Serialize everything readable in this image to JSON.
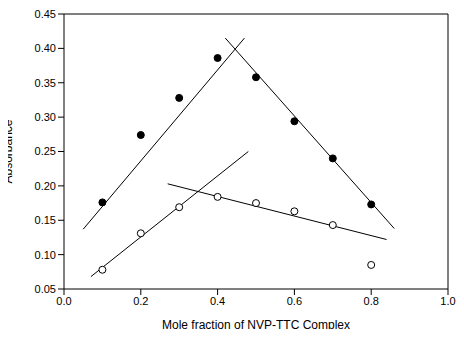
{
  "chart_data": {
    "type": "scatter",
    "x_label": "Mole fraction of NVP-TTC Complex",
    "y_label": "Absorbance",
    "xlim": [
      0,
      1
    ],
    "xticks": [
      {
        "value": 0,
        "label": "0.0"
      },
      0.2,
      0.4,
      0.6,
      0.8,
      {
        "value": 1,
        "label": "1.0"
      }
    ],
    "ylim": [
      0.05,
      0.45
    ],
    "yticks": [
      0.05,
      {
        "value": 0.1,
        "label": "0.10"
      },
      0.15,
      {
        "value": 0.2,
        "label": "0.20"
      },
      0.25,
      {
        "value": 0.3,
        "label": "0.30"
      },
      0.35,
      {
        "value": 0.4,
        "label": "0.40"
      },
      0.45
    ],
    "grid": false,
    "series": [
      {
        "type": "scatter",
        "color": "#000000",
        "marker": "circle",
        "x": [
          0.1,
          0.2,
          0.3,
          0.4,
          0.5,
          0.6,
          0.7,
          0.8
        ],
        "values": [
          0.176,
          0.274,
          0.328,
          0.386,
          0.358,
          0.294,
          0.24,
          0.173
        ]
      },
      {
        "type": "scatter",
        "color": "#000000",
        "marker": "open_circle",
        "x": [
          0.1,
          0.2,
          0.3,
          0.4,
          0.5,
          0.6,
          0.7,
          0.8
        ],
        "values": [
          0.078,
          0.131,
          0.169,
          0.184,
          0.175,
          0.163,
          0.143,
          0.085
        ]
      },
      {
        "type": "line",
        "color": "#000000",
        "line_style": "solid",
        "x": [
          0.05,
          0.47
        ],
        "values": [
          0.137,
          0.415
        ]
      },
      {
        "type": "line",
        "color": "#000000",
        "line_style": "solid",
        "x": [
          0.42,
          0.86
        ],
        "values": [
          0.415,
          0.138
        ]
      },
      {
        "type": "line",
        "color": "#000000",
        "line_style": "solid",
        "x": [
          0.07,
          0.48
        ],
        "values": [
          0.068,
          0.25
        ]
      },
      {
        "type": "line",
        "color": "#000000",
        "line_style": "solid",
        "x": [
          0.27,
          0.84
        ],
        "values": [
          0.203,
          0.122
        ]
      }
    ]
  }
}
